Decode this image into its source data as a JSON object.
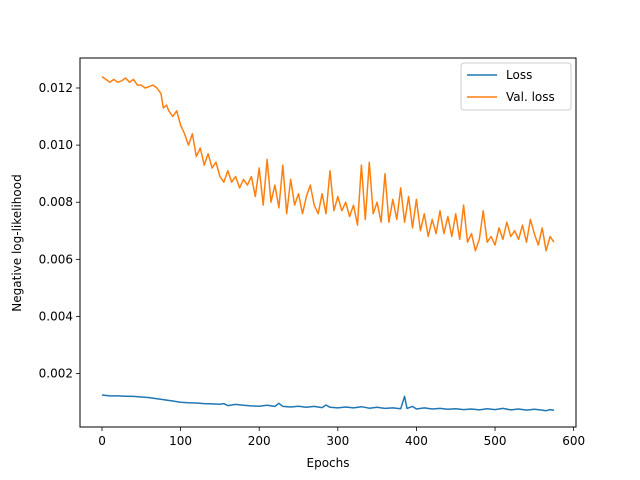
{
  "chart_data": {
    "type": "line",
    "title": "",
    "xlabel": "Epochs",
    "ylabel": "Negative log-likelihood",
    "xlim": [
      -28,
      603
    ],
    "ylim": [
      0.00013,
      0.01305
    ],
    "xticks": [
      0,
      100,
      200,
      300,
      400,
      500,
      600
    ],
    "xtick_labels": [
      "0",
      "100",
      "200",
      "300",
      "400",
      "500",
      "600"
    ],
    "yticks": [
      0.002,
      0.004,
      0.006,
      0.008,
      0.01,
      0.012
    ],
    "ytick_labels": [
      "0.002",
      "0.004",
      "0.006",
      "0.008",
      "0.010",
      "0.012"
    ],
    "grid": false,
    "legend_position": "top-right",
    "series": [
      {
        "name": "Loss",
        "color": "#1f77b4",
        "x": [
          0,
          10,
          20,
          30,
          40,
          50,
          60,
          70,
          80,
          90,
          100,
          110,
          120,
          130,
          140,
          150,
          155,
          160,
          170,
          180,
          190,
          200,
          210,
          220,
          225,
          230,
          240,
          250,
          260,
          270,
          280,
          285,
          290,
          300,
          310,
          320,
          330,
          340,
          350,
          360,
          370,
          380,
          385,
          388,
          395,
          400,
          410,
          420,
          430,
          440,
          450,
          460,
          470,
          480,
          490,
          500,
          510,
          520,
          530,
          540,
          550,
          560,
          565,
          570,
          575
        ],
        "values": [
          0.00125,
          0.00122,
          0.00122,
          0.00121,
          0.0012,
          0.00118,
          0.00116,
          0.00112,
          0.00108,
          0.00104,
          0.001,
          0.00098,
          0.00097,
          0.00095,
          0.00094,
          0.00093,
          0.00095,
          0.00088,
          0.00092,
          0.00089,
          0.00087,
          0.00086,
          0.00089,
          0.00085,
          0.00096,
          0.00085,
          0.00083,
          0.00086,
          0.00082,
          0.00085,
          0.00081,
          0.0009,
          0.00082,
          0.0008,
          0.00083,
          0.0008,
          0.00084,
          0.00079,
          0.00082,
          0.00078,
          0.0008,
          0.00077,
          0.0012,
          0.00078,
          0.00085,
          0.00076,
          0.0008,
          0.00076,
          0.00078,
          0.00075,
          0.00077,
          0.00074,
          0.00076,
          0.00073,
          0.00077,
          0.00074,
          0.00078,
          0.00073,
          0.00076,
          0.00072,
          0.00075,
          0.00072,
          0.0007,
          0.00074,
          0.00071
        ]
      },
      {
        "name": "Val. loss",
        "color": "#ff7f0e",
        "x": [
          0,
          5,
          10,
          15,
          20,
          25,
          30,
          35,
          40,
          45,
          50,
          55,
          60,
          65,
          70,
          75,
          78,
          82,
          85,
          90,
          95,
          100,
          105,
          110,
          115,
          120,
          125,
          130,
          135,
          140,
          145,
          150,
          155,
          160,
          165,
          170,
          175,
          180,
          185,
          190,
          195,
          200,
          205,
          210,
          215,
          220,
          225,
          230,
          235,
          240,
          245,
          250,
          255,
          260,
          265,
          270,
          275,
          280,
          285,
          290,
          295,
          300,
          305,
          310,
          315,
          320,
          325,
          330,
          335,
          340,
          345,
          350,
          355,
          360,
          365,
          370,
          375,
          380,
          385,
          390,
          395,
          400,
          405,
          410,
          415,
          420,
          425,
          430,
          435,
          440,
          445,
          450,
          455,
          460,
          465,
          470,
          475,
          480,
          485,
          490,
          495,
          500,
          505,
          510,
          515,
          520,
          525,
          530,
          535,
          540,
          545,
          550,
          555,
          560,
          565,
          570,
          575
        ],
        "values": [
          0.0124,
          0.0123,
          0.0122,
          0.0123,
          0.0122,
          0.01225,
          0.01235,
          0.0122,
          0.0123,
          0.0121,
          0.0121,
          0.012,
          0.01205,
          0.0121,
          0.012,
          0.0118,
          0.0113,
          0.0114,
          0.0112,
          0.011,
          0.0112,
          0.0107,
          0.0104,
          0.01,
          0.0104,
          0.0096,
          0.0099,
          0.0093,
          0.0097,
          0.0092,
          0.0094,
          0.0089,
          0.0087,
          0.0091,
          0.0087,
          0.0089,
          0.0085,
          0.0088,
          0.0086,
          0.0089,
          0.0082,
          0.0092,
          0.0079,
          0.0095,
          0.008,
          0.0086,
          0.0078,
          0.0093,
          0.0076,
          0.0088,
          0.0079,
          0.0083,
          0.0076,
          0.0082,
          0.0086,
          0.0079,
          0.0076,
          0.0083,
          0.0076,
          0.0091,
          0.0077,
          0.0082,
          0.0077,
          0.008,
          0.0075,
          0.0079,
          0.0072,
          0.0093,
          0.0074,
          0.0094,
          0.0076,
          0.008,
          0.0073,
          0.009,
          0.0073,
          0.0081,
          0.0074,
          0.0085,
          0.0073,
          0.0082,
          0.0071,
          0.0081,
          0.007,
          0.0076,
          0.0068,
          0.0074,
          0.0069,
          0.0077,
          0.0069,
          0.0075,
          0.0068,
          0.0076,
          0.0067,
          0.0079,
          0.0066,
          0.0069,
          0.0063,
          0.0067,
          0.0077,
          0.0066,
          0.0068,
          0.0065,
          0.0071,
          0.0067,
          0.0073,
          0.0068,
          0.007,
          0.0067,
          0.0072,
          0.0066,
          0.0074,
          0.0069,
          0.0065,
          0.0071,
          0.0063,
          0.0068,
          0.0066
        ]
      }
    ]
  }
}
